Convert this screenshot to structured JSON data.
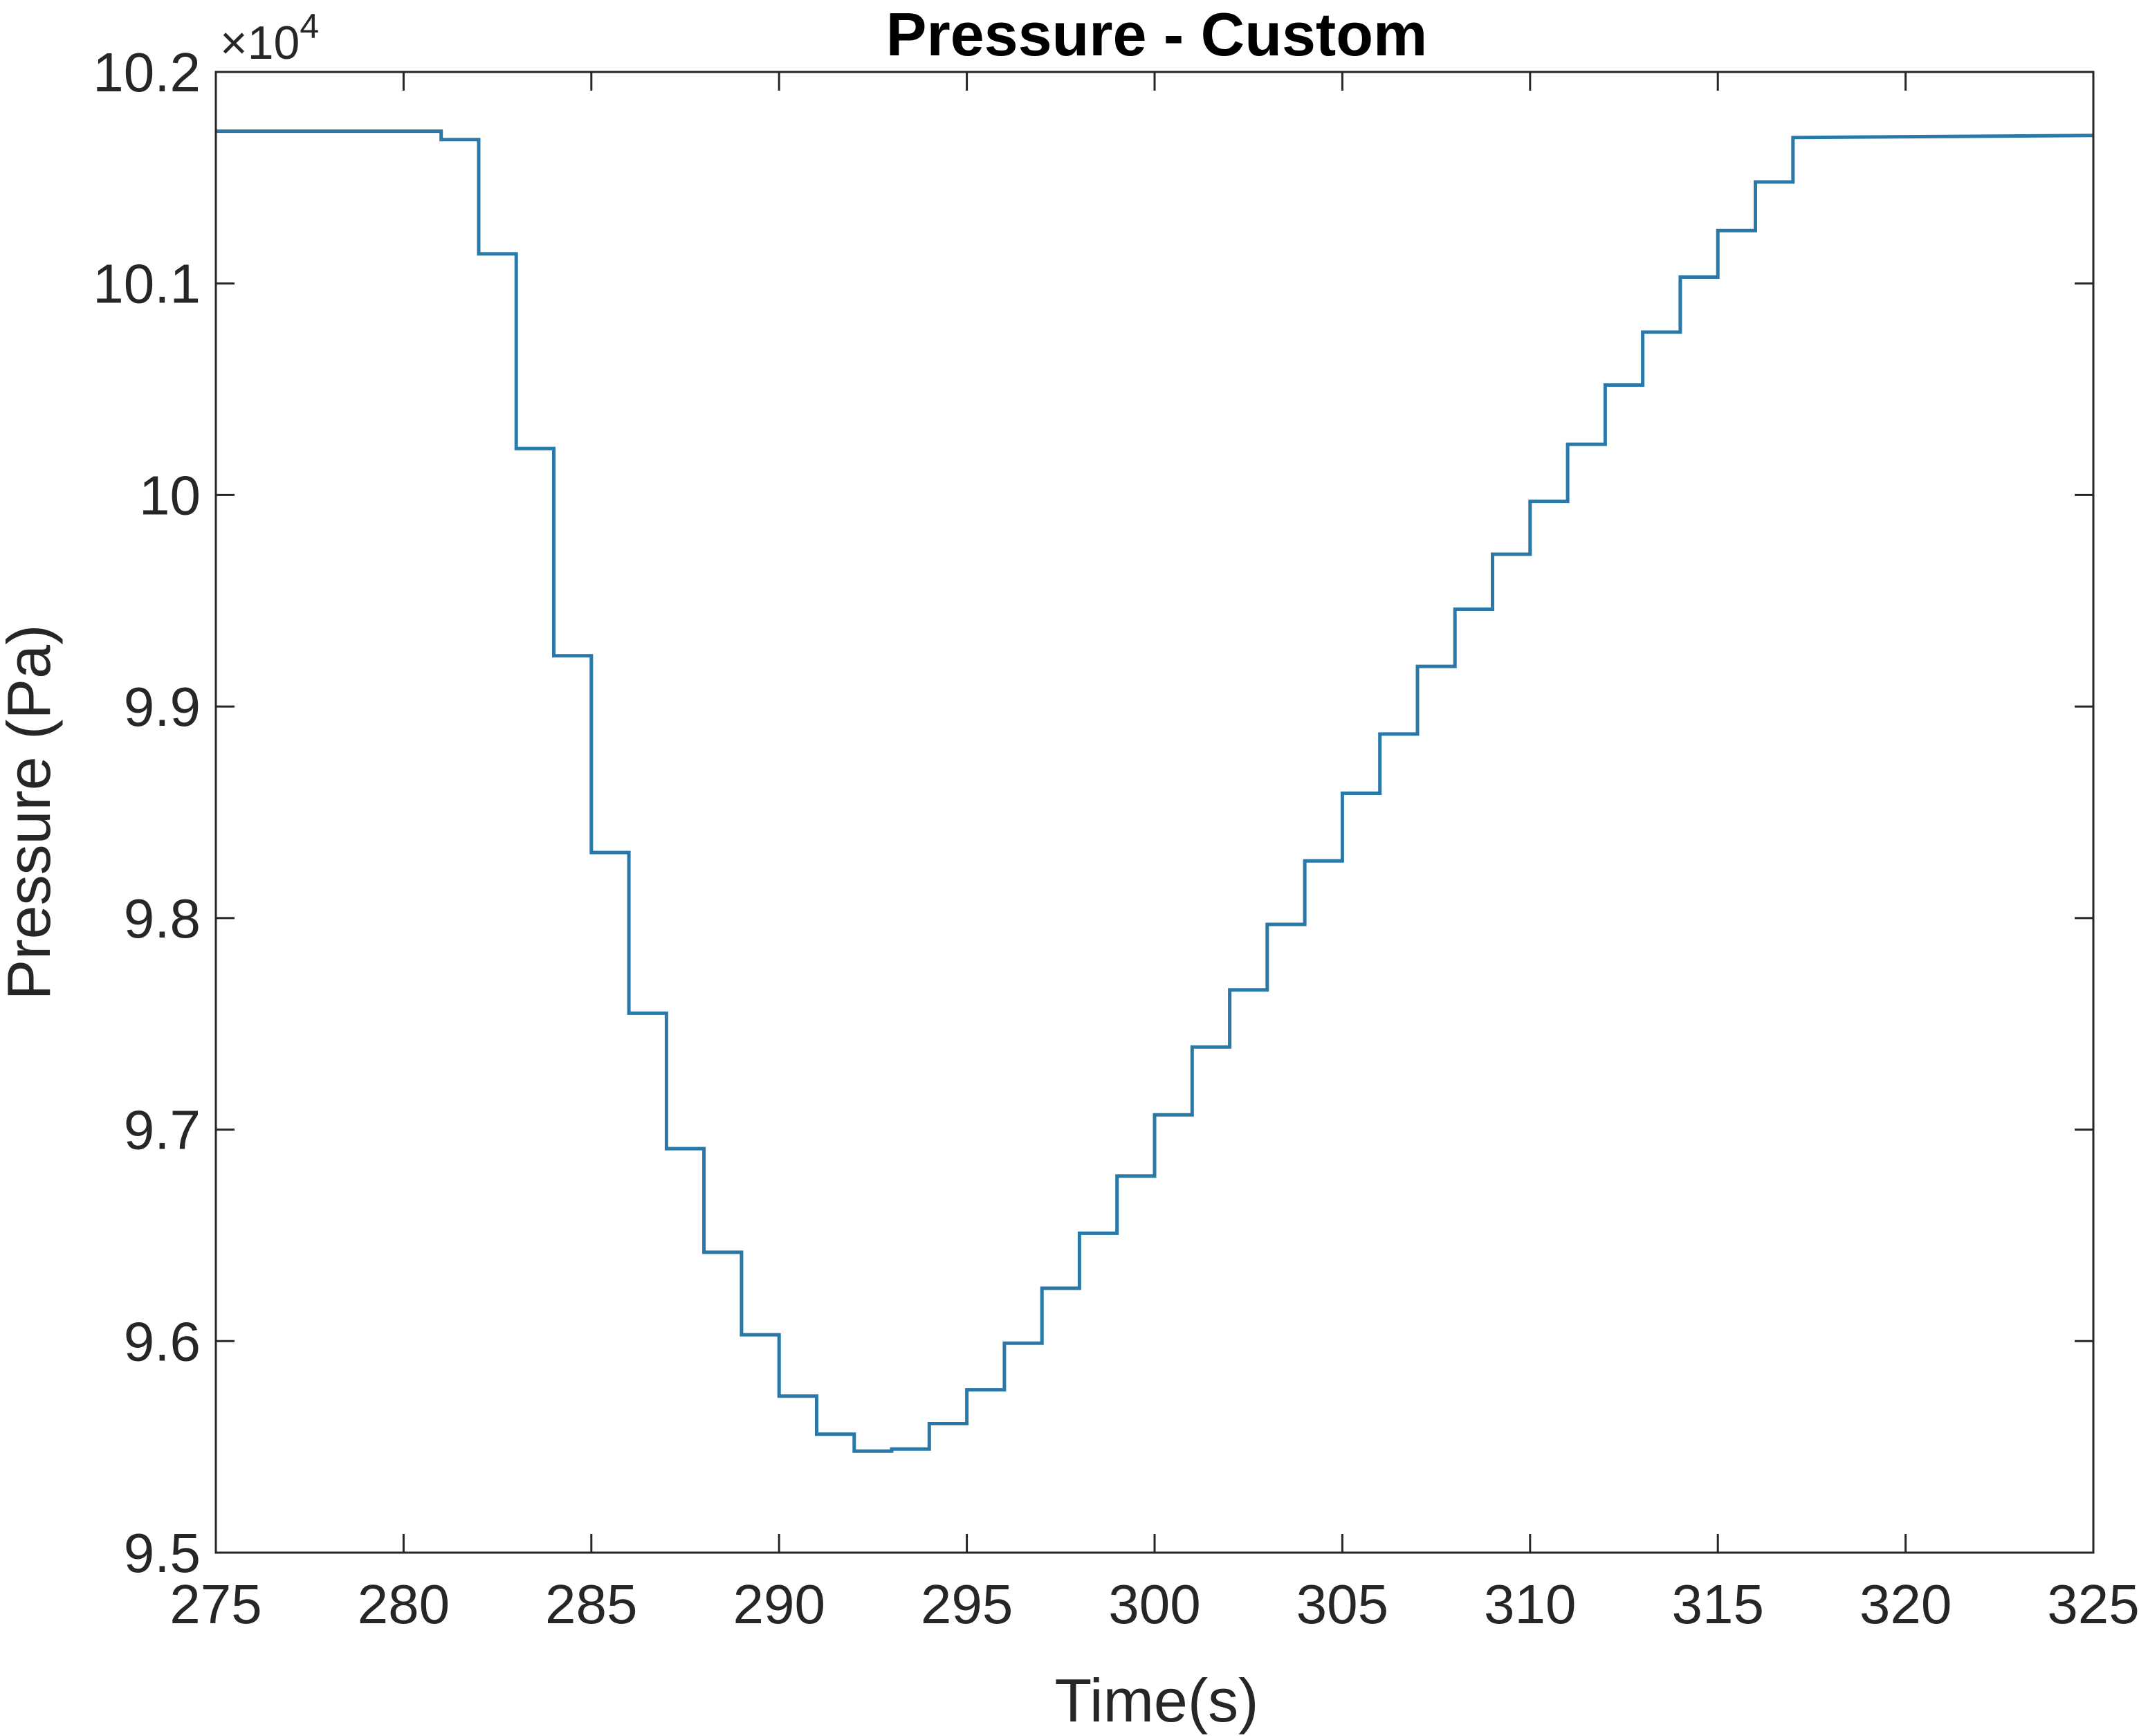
{
  "chart_data": {
    "type": "line",
    "title": "Pressure - Custom",
    "xlabel": "Time(s)",
    "ylabel": "Pressure (Pa)",
    "y_exponent_base": "×10",
    "y_exponent_power": "4",
    "xlim": [
      275,
      325
    ],
    "ylim": [
      9.5,
      10.2
    ],
    "x_ticks": [
      275,
      280,
      285,
      290,
      295,
      300,
      305,
      310,
      315,
      320,
      325
    ],
    "x_tick_labels": [
      "275",
      "280",
      "285",
      "290",
      "295",
      "300",
      "305",
      "310",
      "315",
      "320",
      "325"
    ],
    "y_ticks": [
      9.5,
      9.6,
      9.7,
      9.8,
      9.9,
      10,
      10.1,
      10.2
    ],
    "y_tick_labels": [
      "9.5",
      "9.6",
      "9.7",
      "9.8",
      "9.9",
      "10",
      "10.1",
      "10.2"
    ],
    "grid": false,
    "line_color": "#2878a8",
    "series": [
      {
        "x": [
          275,
          281,
          281,
          282,
          282,
          283,
          283,
          284,
          284,
          285,
          285,
          286,
          286,
          287,
          287,
          288,
          288,
          289,
          289,
          290,
          290,
          291,
          291,
          292,
          292,
          293,
          293,
          294,
          294,
          295,
          295,
          296,
          296,
          297,
          297,
          298,
          298,
          299,
          299,
          300,
          300,
          301,
          301,
          302,
          302,
          303,
          303,
          304,
          304,
          305,
          305,
          306,
          306,
          307,
          307,
          308,
          308,
          309,
          309,
          310,
          310,
          311,
          311,
          312,
          312,
          313,
          313,
          314,
          314,
          315,
          315,
          316,
          316,
          317,
          317,
          325
        ],
        "y": [
          10.172,
          10.172,
          10.168,
          10.168,
          10.114,
          10.114,
          10.022,
          10.022,
          9.924,
          9.924,
          9.831,
          9.831,
          9.755,
          9.755,
          9.691,
          9.691,
          9.642,
          9.642,
          9.603,
          9.603,
          9.574,
          9.574,
          9.556,
          9.556,
          9.548,
          9.548,
          9.549,
          9.549,
          9.561,
          9.561,
          9.577,
          9.577,
          9.599,
          9.599,
          9.625,
          9.625,
          9.651,
          9.651,
          9.678,
          9.678,
          9.707,
          9.707,
          9.739,
          9.739,
          9.766,
          9.766,
          9.797,
          9.797,
          9.827,
          9.827,
          9.859,
          9.859,
          9.887,
          9.887,
          9.919,
          9.919,
          9.946,
          9.946,
          9.972,
          9.972,
          9.997,
          9.997,
          10.024,
          10.024,
          10.052,
          10.052,
          10.077,
          10.077,
          10.103,
          10.103,
          10.125,
          10.125,
          10.148,
          10.148,
          10.169,
          10.17
        ]
      }
    ]
  }
}
